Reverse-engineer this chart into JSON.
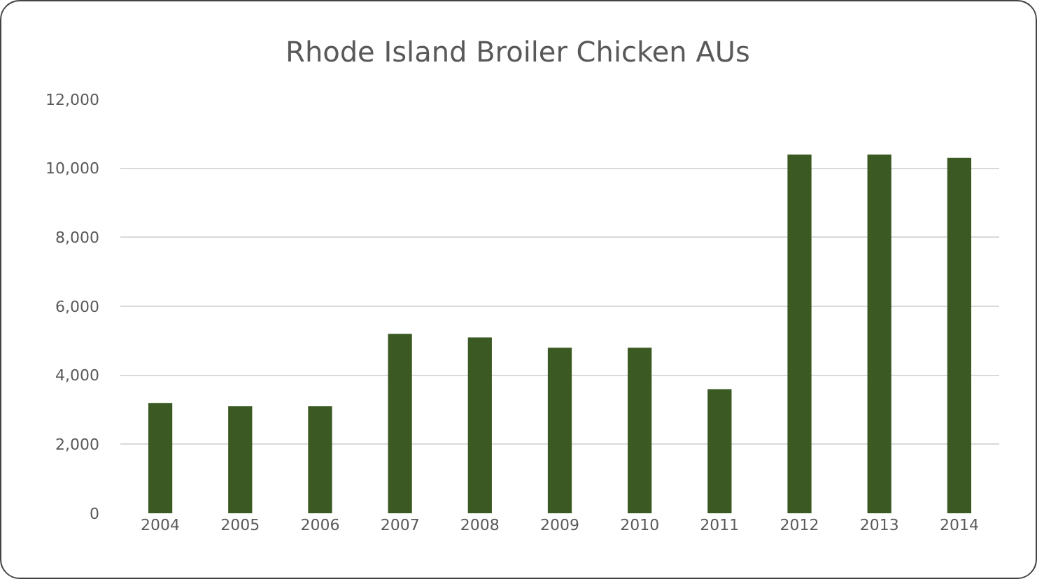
{
  "chart_data": {
    "type": "bar",
    "title": "Rhode Island Broiler Chicken AUs",
    "categories": [
      "2004",
      "2005",
      "2006",
      "2007",
      "2008",
      "2009",
      "2010",
      "2011",
      "2012",
      "2013",
      "2014"
    ],
    "values": [
      3200,
      3100,
      3100,
      5200,
      5100,
      4800,
      4800,
      3600,
      10400,
      10400,
      10300
    ],
    "color": "#3b5a23",
    "ylim": [
      0,
      12000
    ],
    "yticks": [
      {
        "value": 0,
        "label": "0"
      },
      {
        "value": 2000,
        "label": "2,000"
      },
      {
        "value": 4000,
        "label": "4,000"
      },
      {
        "value": 6000,
        "label": "6,000"
      },
      {
        "value": 8000,
        "label": "8,000"
      },
      {
        "value": 10000,
        "label": "10,000"
      },
      {
        "value": 12000,
        "label": "12,000"
      }
    ],
    "grid": "y"
  }
}
